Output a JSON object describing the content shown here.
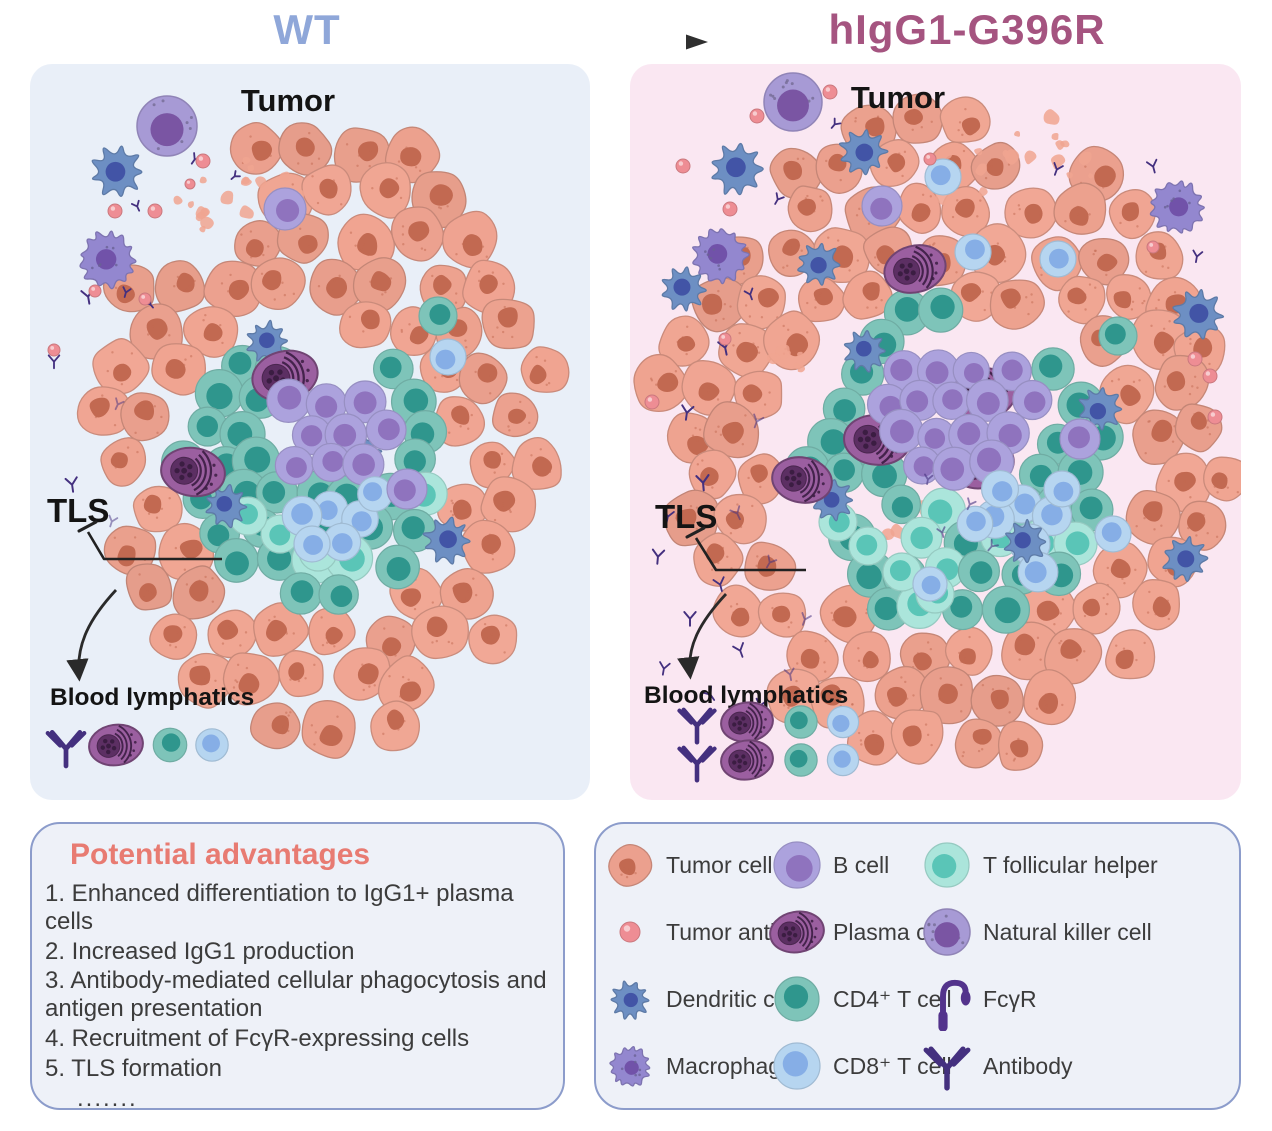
{
  "header": {
    "left_title": "WT",
    "right_title": "hIgG1-G396R",
    "left_title_color": "#8FA7D9",
    "right_title_color": "#A55480"
  },
  "panels": {
    "wt": {
      "name": "WT",
      "tumor_label": "Tumor",
      "tls_label": "TLS",
      "lymphatics_label": "Blood lymphatics",
      "lymphatic_rows": 1,
      "background": "#E9EFF8"
    },
    "g396r": {
      "name": "hIgG1-G396R",
      "tumor_label": "Tumor",
      "tls_label": "TLS",
      "lymphatics_label": "Blood lymphatics",
      "lymphatic_rows": 2,
      "background": "#FAE7F2"
    }
  },
  "advantages": {
    "title": "Potential advantages",
    "title_color": "#E87B72",
    "items": [
      "1. Enhanced differentiation to IgG1+ plasma cells",
      "2. Increased IgG1 production",
      "3. Antibody-mediated cellular phagocytosis and antigen presentation",
      "4. Recruitment of FcγR-expressing cells",
      "5. TLS formation",
      "......."
    ]
  },
  "legend": {
    "columns": [
      [
        {
          "icon": "tumor-cell",
          "label": "Tumor cell"
        },
        {
          "icon": "tumor-antigen",
          "label": "Tumor antigen"
        },
        {
          "icon": "dendritic-cell",
          "label": "Dendritic cells"
        },
        {
          "icon": "macrophage",
          "label": "Macrophages"
        }
      ],
      [
        {
          "icon": "b-cell",
          "label": "B cell"
        },
        {
          "icon": "plasma-cell",
          "label": "Plasma cell"
        },
        {
          "icon": "cd4-t-cell",
          "label": "CD4⁺ T cell"
        },
        {
          "icon": "cd8-t-cell",
          "label": "CD8⁺ T cell"
        }
      ],
      [
        {
          "icon": "t-follicular-helper",
          "label": "T follicular helper"
        },
        {
          "icon": "natural-killer-cell",
          "label": "Natural killer cell"
        },
        {
          "icon": "fcgr",
          "label": "FcγR"
        },
        {
          "icon": "antibody",
          "label": "Antibody"
        }
      ]
    ]
  },
  "colors": {
    "panel_wt_bg": "#E9EFF8",
    "panel_g396r_bg": "#FAE7F2",
    "box_bg": "#EEF1F8",
    "box_border": "#8C9CCB",
    "label_color": "#141414",
    "text_color": "#3C3C3C",
    "arrow_color": "#333333",
    "tumor_cell_body": "#F0A491",
    "tumor_cell_nucleus": "#C26951",
    "tumor_antigen": "#EE8D94",
    "cd4_body": "#7EC4B9",
    "cd4_nucleus": "#2F968D",
    "tfh_body": "#ABE5DB",
    "tfh_nucleus": "#5AC5B7",
    "b_cell_body": "#ACA2DD",
    "b_cell_nucleus": "#8F73BE",
    "cd8_body": "#B6D5F0",
    "cd8_nucleus": "#86AEE6",
    "plasma_body": "#9B5FA0",
    "plasma_core": "#5C2F63",
    "plasma_detail": "#3B1D42",
    "dendritic_body": "#6D8FC3",
    "dendritic_nucleus": "#4254A6",
    "macrophage_body": "#9387CF",
    "macrophage_nucleus": "#7152A9",
    "nk_body": "#A79AD5",
    "nk_nucleus": "#7A55A3",
    "antibody": "#44307F",
    "fcgr": "#53338C"
  }
}
